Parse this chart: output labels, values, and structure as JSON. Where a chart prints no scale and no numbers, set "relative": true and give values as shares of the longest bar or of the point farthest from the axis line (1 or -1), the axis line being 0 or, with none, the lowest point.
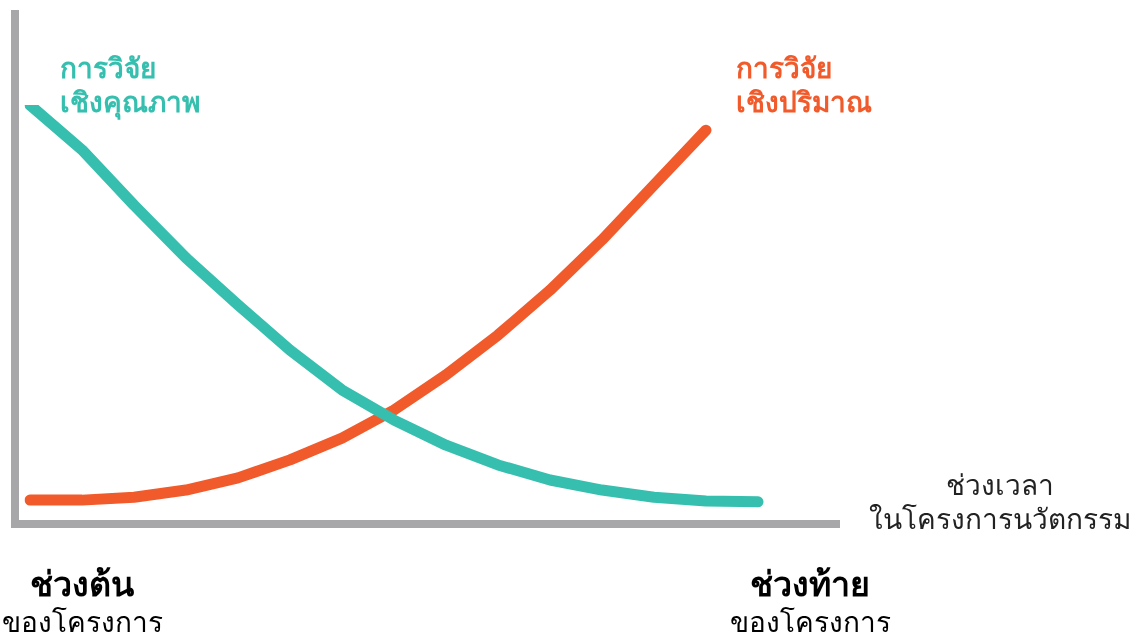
{
  "chart_data": {
    "type": "line",
    "relative": true,
    "xlabel": "ช่วงเวลา\nในโครงการนวัตกรรม",
    "categories": [
      null,
      "ช่วงต้น\nของโครงการ",
      null,
      null,
      null,
      null,
      null,
      null,
      null,
      null,
      null,
      null,
      null,
      null,
      null,
      "ช่วงท้าย\nของโครงการ"
    ],
    "series": [
      {
        "name": "การวิจัย\nเชิงคุณภาพ",
        "color": "#36bfae",
        "values": [
          1,
          0.893,
          0.761,
          0.635,
          0.523,
          0.415,
          0.32,
          0.248,
          0.188,
          0.141,
          0.105,
          0.081,
          0.064,
          0.055,
          0.053,
          null
        ]
      },
      {
        "name": "การวิจัย\nเชิงปริมาณ",
        "color": "#f15a2b",
        "values": [
          0.057,
          0.057,
          0.064,
          0.081,
          0.11,
          0.153,
          0.205,
          0.272,
          0.356,
          0.451,
          0.558,
          0.678,
          0.809,
          0.94,
          null,
          null
        ]
      }
    ],
    "legend": false,
    "grid": false,
    "marker": "none",
    "line_style": "solid"
  }
}
